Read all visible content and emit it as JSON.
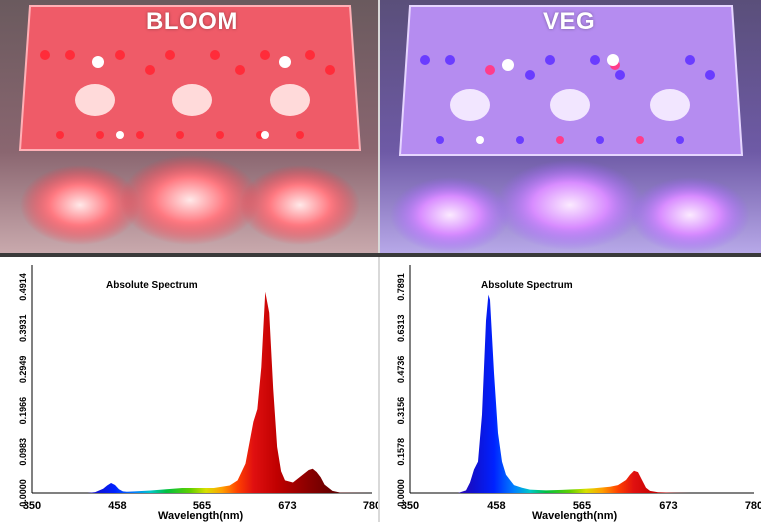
{
  "photos": {
    "bloom": {
      "label": "BLOOM",
      "icon": "grow-light-bloom-photo"
    },
    "veg": {
      "label": "VEG",
      "icon": "grow-light-veg-photo"
    }
  },
  "colors": {
    "bloom_accent": "#e8303c",
    "veg_accent": "#a06aff"
  },
  "chart_data": [
    {
      "type": "area",
      "title": "Absolute Spectrum",
      "xlabel": "Wavelength(nm)",
      "ylabel": "",
      "xlim": [
        350,
        780
      ],
      "ylim": [
        0,
        0.4914
      ],
      "x_ticks": [
        "350",
        "458",
        "565",
        "673",
        "780"
      ],
      "y_ticks": [
        "0.0000",
        "0.0983",
        "0.1966",
        "0.2949",
        "0.3931",
        "0.4914"
      ],
      "grid": false,
      "x": [
        350,
        420,
        430,
        440,
        445,
        450,
        455,
        460,
        465,
        470,
        480,
        500,
        520,
        540,
        560,
        580,
        600,
        610,
        620,
        625,
        630,
        635,
        640,
        645,
        650,
        655,
        660,
        665,
        670,
        680,
        690,
        700,
        705,
        710,
        715,
        720,
        730,
        740,
        780
      ],
      "values": [
        0,
        0,
        0.002,
        0.01,
        0.018,
        0.024,
        0.019,
        0.009,
        0.004,
        0.003,
        0.004,
        0.006,
        0.009,
        0.012,
        0.012,
        0.012,
        0.018,
        0.03,
        0.07,
        0.12,
        0.17,
        0.2,
        0.3,
        0.48,
        0.43,
        0.25,
        0.11,
        0.052,
        0.03,
        0.025,
        0.04,
        0.055,
        0.058,
        0.05,
        0.038,
        0.02,
        0.005,
        0.001,
        0
      ]
    },
    {
      "type": "area",
      "title": "Absolute Spectrum",
      "xlabel": "Wavelength(nm)",
      "ylabel": "",
      "xlim": [
        350,
        780
      ],
      "ylim": [
        0,
        0.7891
      ],
      "x_ticks": [
        "350",
        "458",
        "565",
        "673",
        "780"
      ],
      "y_ticks": [
        "0.0000",
        "0.1578",
        "0.3156",
        "0.4736",
        "0.6313",
        "0.7891"
      ],
      "grid": false,
      "x": [
        350,
        410,
        420,
        425,
        430,
        435,
        440,
        445,
        448,
        450,
        455,
        460,
        465,
        470,
        475,
        480,
        490,
        500,
        520,
        540,
        560,
        580,
        600,
        610,
        620,
        625,
        630,
        635,
        640,
        645,
        650,
        660,
        670,
        680,
        700,
        780
      ],
      "values": [
        0,
        0,
        0.01,
        0.04,
        0.09,
        0.12,
        0.3,
        0.66,
        0.76,
        0.74,
        0.46,
        0.23,
        0.12,
        0.07,
        0.05,
        0.03,
        0.02,
        0.013,
        0.01,
        0.012,
        0.015,
        0.018,
        0.024,
        0.03,
        0.05,
        0.07,
        0.085,
        0.08,
        0.05,
        0.02,
        0.008,
        0.003,
        0.002,
        0.001,
        0,
        0
      ]
    }
  ]
}
